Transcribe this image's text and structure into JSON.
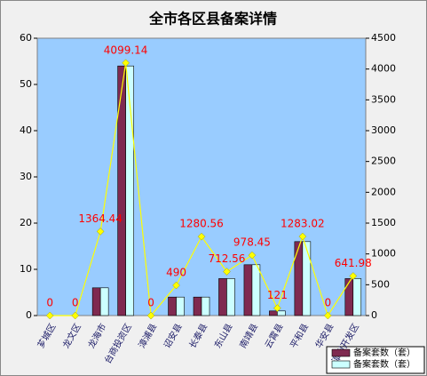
{
  "chart_data": {
    "type": "bar",
    "title": "全市各区县备案详情",
    "categories": [
      "芗城区",
      "龙文区",
      "龙海市",
      "台商投资区",
      "漳浦县",
      "诏安县",
      "长泰县",
      "东山县",
      "南靖县",
      "云霄县",
      "平和县",
      "华安县",
      "漳州开发区"
    ],
    "series": [
      {
        "name": "备案套数（套）",
        "color": "#7f2a50",
        "values": [
          0,
          0,
          6,
          54,
          0,
          4,
          4,
          8,
          11,
          1,
          16,
          0,
          8
        ]
      },
      {
        "name": "备案套数（套）",
        "color": "#ccffff",
        "values": [
          0,
          0,
          6,
          54,
          0,
          4,
          4,
          8,
          11,
          1,
          16,
          0,
          8
        ]
      },
      {
        "type": "line",
        "axis": "y2",
        "color": "#ffff00",
        "values": [
          0,
          0,
          1364.44,
          4099.14,
          0,
          490,
          1280.56,
          712.56,
          978.45,
          121,
          1283.02,
          0,
          641.98
        ]
      }
    ],
    "value_label_color": "#ff0000",
    "ylim": [
      0,
      60
    ],
    "yticks": [
      0,
      10,
      20,
      30,
      40,
      50,
      60
    ],
    "y2lim": [
      0,
      4500
    ],
    "y2ticks": [
      0,
      500,
      1000,
      1500,
      2000,
      2500,
      3000,
      3500,
      4000,
      4500
    ],
    "plot_color": "#99ccff"
  }
}
